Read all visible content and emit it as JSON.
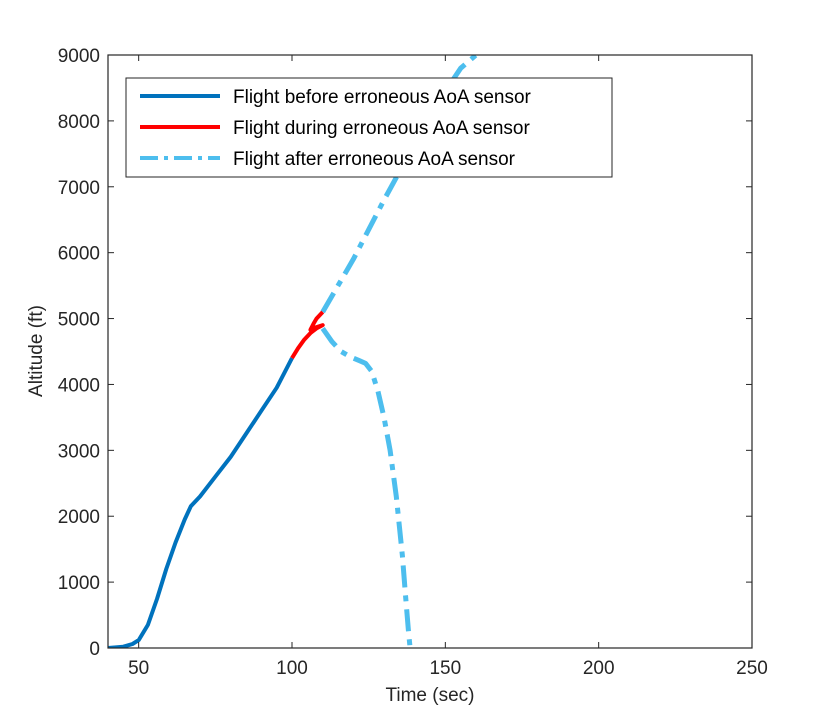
{
  "chart_data": {
    "type": "line",
    "title": "",
    "xlabel": "Time (sec)",
    "ylabel": "Altitude (ft)",
    "xlim": [
      40,
      250
    ],
    "ylim": [
      0,
      9000
    ],
    "x_ticks": [
      50,
      100,
      150,
      200,
      250
    ],
    "y_ticks": [
      0,
      1000,
      2000,
      3000,
      4000,
      5000,
      6000,
      7000,
      8000,
      9000
    ],
    "grid": false,
    "legend_position": "top-left",
    "series": [
      {
        "name": "Flight before erroneous AoA sensor",
        "color": "#0072BD",
        "style": "solid",
        "points": [
          [
            40,
            0
          ],
          [
            45,
            20
          ],
          [
            48,
            60
          ],
          [
            50,
            120
          ],
          [
            53,
            350
          ],
          [
            56,
            750
          ],
          [
            59,
            1200
          ],
          [
            62,
            1600
          ],
          [
            65,
            1950
          ],
          [
            67,
            2150
          ],
          [
            70,
            2300
          ],
          [
            75,
            2600
          ],
          [
            80,
            2900
          ],
          [
            85,
            3250
          ],
          [
            90,
            3600
          ],
          [
            95,
            3950
          ],
          [
            100,
            4400
          ]
        ]
      },
      {
        "name": "Flight during erroneous AoA sensor",
        "color": "#FF0000",
        "style": "solid",
        "points": [
          [
            100,
            4400
          ],
          [
            102,
            4550
          ],
          [
            104,
            4680
          ],
          [
            106,
            4780
          ],
          [
            108,
            4850
          ],
          [
            110,
            4900
          ],
          [
            108,
            4870
          ],
          [
            106,
            4830
          ],
          [
            107,
            4920
          ],
          [
            108,
            5000
          ],
          [
            110,
            5100
          ]
        ]
      },
      {
        "name": "Flight after erroneous AoA sensor",
        "color": "#4DBEEE",
        "style": "dashdot",
        "branches": [
          [
            [
              110,
              5100
            ],
            [
              120,
              5900
            ],
            [
              130,
              6800
            ],
            [
              140,
              7650
            ],
            [
              150,
              8450
            ],
            [
              155,
              8800
            ],
            [
              160,
              9000
            ]
          ],
          [
            [
              110,
              4850
            ],
            [
              113,
              4650
            ],
            [
              116,
              4500
            ],
            [
              119,
              4420
            ],
            [
              122,
              4360
            ],
            [
              124,
              4320
            ],
            [
              126,
              4200
            ],
            [
              128,
              3900
            ],
            [
              130,
              3500
            ],
            [
              132,
              3000
            ],
            [
              134,
              2300
            ],
            [
              136,
              1400
            ],
            [
              137,
              800
            ],
            [
              138,
              250
            ],
            [
              138.5,
              0
            ]
          ]
        ]
      }
    ]
  }
}
